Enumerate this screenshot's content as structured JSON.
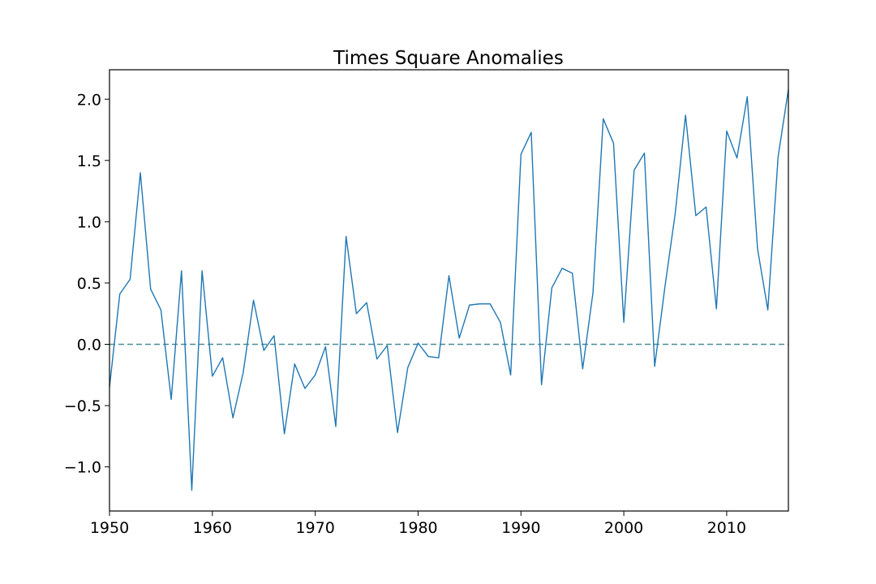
{
  "chart_data": {
    "type": "line",
    "title": "Times Square Anomalies",
    "xlabel": "",
    "ylabel": "",
    "xlim": [
      1950,
      2016
    ],
    "ylim": [
      -1.36,
      2.24
    ],
    "xticks": [
      1950,
      1960,
      1970,
      1980,
      1990,
      2000,
      2010
    ],
    "xtick_labels": [
      "1950",
      "1960",
      "1970",
      "1980",
      "1990",
      "2000",
      "2010"
    ],
    "yticks": [
      -1.0,
      -0.5,
      0.0,
      0.5,
      1.0,
      1.5,
      2.0
    ],
    "ytick_labels": [
      "−1.0",
      "−0.5",
      "0.0",
      "0.5",
      "1.0",
      "1.5",
      "2.0"
    ],
    "grid": false,
    "reference_line": {
      "y": 0.0,
      "style": "dashed",
      "color": "#4a8a9a"
    },
    "series": [
      {
        "color": "#1f77b4",
        "x": [
          1950,
          1951,
          1952,
          1953,
          1954,
          1955,
          1956,
          1957,
          1958,
          1959,
          1960,
          1961,
          1962,
          1963,
          1964,
          1965,
          1966,
          1967,
          1968,
          1969,
          1970,
          1971,
          1972,
          1973,
          1974,
          1975,
          1976,
          1977,
          1978,
          1979,
          1980,
          1981,
          1982,
          1983,
          1984,
          1985,
          1986,
          1987,
          1988,
          1989,
          1990,
          1991,
          1992,
          1993,
          1994,
          1995,
          1996,
          1997,
          1998,
          1999,
          2000,
          2001,
          2002,
          2003,
          2004,
          2005,
          2006,
          2007,
          2008,
          2009,
          2010,
          2011,
          2012,
          2013,
          2014,
          2015,
          2016
        ],
        "y": [
          -0.35,
          0.41,
          0.53,
          1.4,
          0.45,
          0.28,
          -0.45,
          0.6,
          -1.19,
          0.6,
          -0.26,
          -0.11,
          -0.6,
          -0.23,
          0.36,
          -0.05,
          0.07,
          -0.73,
          -0.16,
          -0.36,
          -0.25,
          -0.02,
          -0.67,
          0.88,
          0.25,
          0.34,
          -0.12,
          -0.01,
          -0.72,
          -0.19,
          0.01,
          -0.1,
          -0.11,
          0.56,
          0.05,
          0.32,
          0.33,
          0.33,
          0.18,
          -0.25,
          1.55,
          1.73,
          -0.33,
          0.46,
          0.62,
          0.58,
          -0.2,
          0.42,
          1.84,
          1.64,
          0.18,
          1.42,
          1.56,
          -0.18,
          0.47,
          1.07,
          1.87,
          1.05,
          1.12,
          0.29,
          1.74,
          1.52,
          2.02,
          0.78,
          0.28,
          1.53,
          2.08
        ]
      }
    ]
  }
}
